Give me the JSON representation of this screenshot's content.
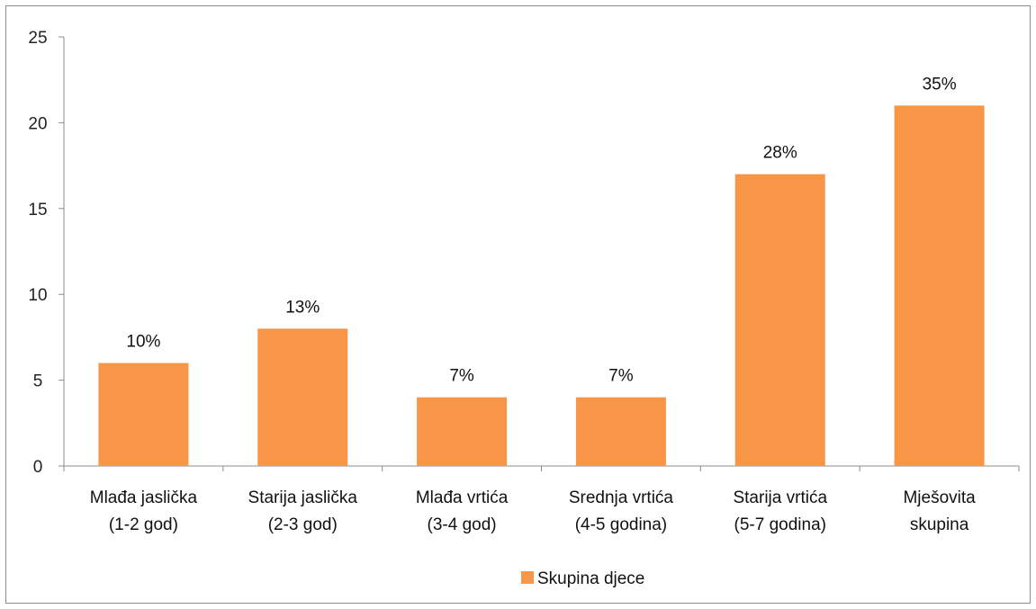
{
  "chart_data": {
    "type": "bar",
    "categories": [
      [
        "Mlađa jaslička",
        "(1-2 god)"
      ],
      [
        "Starija jaslička",
        "(2-3 god)"
      ],
      [
        "Mlađa vrtića",
        "(3-4 god)"
      ],
      [
        "Srednja vrtića",
        "(4-5 godina)"
      ],
      [
        "Starija vrtića",
        "(5-7 godina)"
      ],
      [
        "Mješovita",
        "skupina"
      ]
    ],
    "series": [
      {
        "name": "Skupina djece",
        "values": [
          6,
          8,
          4,
          4,
          17,
          21
        ],
        "data_labels": [
          "10%",
          "13%",
          "7%",
          "7%",
          "28%",
          "35%"
        ],
        "color": "#F79646"
      }
    ],
    "ylim": [
      0,
      25
    ],
    "yticks": [
      0,
      5,
      10,
      15,
      20,
      25
    ],
    "grid": false,
    "legend": "bottom"
  }
}
